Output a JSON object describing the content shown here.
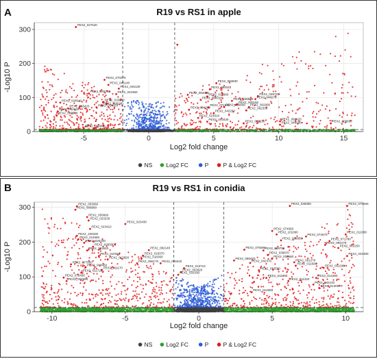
{
  "chart_data": [
    {
      "type": "scatter",
      "panel_label": "A",
      "title": "R19 vs RS1 in apple",
      "xlabel": "Log2 fold change",
      "ylabel": "-Log10 P",
      "xlim": [
        -8.8,
        16.5
      ],
      "ylim": [
        0,
        320
      ],
      "xticks": [
        -5,
        0,
        5,
        10,
        15
      ],
      "yticks": [
        0,
        100,
        200,
        300
      ],
      "grid": true,
      "fc_cutoff": [
        -2,
        2
      ],
      "p_cutoff": 6,
      "legend": {
        "position": "bottom",
        "entries": [
          "NS",
          "Log2 FC",
          "P",
          "P & Log2 FC"
        ]
      },
      "colors": {
        "NS": "#404040",
        "Log2 FC": "#2ca02c",
        "P": "#2a5bd7",
        "P & Log2 FC": "#e31a1c"
      },
      "labeled_points": [
        {
          "x": -5.6,
          "y": 307,
          "label": "PEX2_027540"
        },
        {
          "x": -3.4,
          "y": 152,
          "label": "PEX2_070270"
        },
        {
          "x": -3.1,
          "y": 137,
          "label": "PEX2_045140"
        },
        {
          "x": -2.3,
          "y": 126,
          "label": "PEX2_045130"
        },
        {
          "x": -4.6,
          "y": 112,
          "label": "PEX2_065750"
        },
        {
          "x": -2.5,
          "y": 110,
          "label": "PEX2_041960"
        },
        {
          "x": -6.8,
          "y": 85,
          "label": "PEX2_028610"
        },
        {
          "x": -3.5,
          "y": 87,
          "label": "PEX2_016560"
        },
        {
          "x": -3.6,
          "y": 76,
          "label": "PEX2_406240"
        },
        {
          "x": -6.2,
          "y": 68,
          "label": "PEX2_016420"
        },
        {
          "x": -4.0,
          "y": 70,
          "label": "PEX2_039320"
        },
        {
          "x": -7.0,
          "y": 59,
          "label": "PEX2_082630"
        },
        {
          "x": -7.1,
          "y": 48,
          "label": "PEX2_069560"
        },
        {
          "x": -5.0,
          "y": 10,
          "label": "PEX2_000800"
        },
        {
          "x": 5.2,
          "y": 142,
          "label": "PEX2_083830"
        },
        {
          "x": 4.7,
          "y": 124,
          "label": "PEX2_084020"
        },
        {
          "x": 3.0,
          "y": 108,
          "label": "PEX2_062010"
        },
        {
          "x": 4.5,
          "y": 103,
          "label": "PEX2_017960"
        },
        {
          "x": 4.0,
          "y": 93,
          "label": "PEX2_068310"
        },
        {
          "x": 6.4,
          "y": 90,
          "label": "PEX2_035880"
        },
        {
          "x": 8.4,
          "y": 104,
          "label": "PEX2_028720"
        },
        {
          "x": 8.2,
          "y": 95,
          "label": "PEX2_048270"
        },
        {
          "x": 6.8,
          "y": 80,
          "label": "PEX2_000160"
        },
        {
          "x": 4.6,
          "y": 71,
          "label": "PEX2_071540"
        },
        {
          "x": 5.8,
          "y": 72,
          "label": "PEX2_039090"
        },
        {
          "x": 7.7,
          "y": 72,
          "label": "PEX2_002900"
        },
        {
          "x": 7.5,
          "y": 62,
          "label": "PEX2_092330"
        },
        {
          "x": 3.1,
          "y": 64,
          "label": "PEX2_004280"
        },
        {
          "x": 5.0,
          "y": 54,
          "label": "PEX2_042250"
        },
        {
          "x": 3.8,
          "y": 40,
          "label": "PEX2_023510"
        },
        {
          "x": 4.5,
          "y": 29,
          "label": "PEX2_003430"
        },
        {
          "x": 7.3,
          "y": 24,
          "label": "PEX2_000230"
        },
        {
          "x": 10.1,
          "y": 30,
          "label": "PEX2_068620"
        },
        {
          "x": 10.1,
          "y": 20,
          "label": "PEX2_048560"
        },
        {
          "x": 14.0,
          "y": 24,
          "label": "PEX2_009650"
        },
        {
          "x": 2.2,
          "y": 255,
          "label": ""
        }
      ]
    },
    {
      "type": "scatter",
      "panel_label": "B",
      "title": "R19 vs RS1 in conidia",
      "xlabel": "Log2 fold change",
      "ylabel": "-Log10 P",
      "xlim": [
        -11.2,
        11.2
      ],
      "ylim": [
        0,
        315
      ],
      "xticks": [
        -10,
        -5,
        0,
        5,
        10
      ],
      "yticks": [
        0,
        100,
        200,
        300
      ],
      "grid": true,
      "fc_cutoff": [
        -1.7,
        1.7
      ],
      "p_cutoff": 12,
      "legend": {
        "position": "bottom",
        "entries": [
          "NS",
          "Log2 FC",
          "P",
          "P & Log2 FC"
        ]
      },
      "colors": {
        "NS": "#404040",
        "Log2 FC": "#2ca02c",
        "P": "#2a5bd7",
        "P & Log2 FC": "#e31a1c"
      },
      "labeled_points": [
        {
          "x": -8.3,
          "y": 303,
          "label": "PEX2_053060"
        },
        {
          "x": -8.4,
          "y": 293,
          "label": "PEX2_006660"
        },
        {
          "x": -7.6,
          "y": 272,
          "label": "PEX2_050660"
        },
        {
          "x": -7.5,
          "y": 262,
          "label": "PEX2_023230"
        },
        {
          "x": -5.0,
          "y": 252,
          "label": "PEX2_023430"
        },
        {
          "x": -7.4,
          "y": 238,
          "label": "PEX2_023410"
        },
        {
          "x": -8.3,
          "y": 218,
          "label": "PEX2_100330"
        },
        {
          "x": -8.2,
          "y": 208,
          "label": "PEX2_011560"
        },
        {
          "x": -7.8,
          "y": 198,
          "label": "PEX2_026700"
        },
        {
          "x": -7.2,
          "y": 187,
          "label": "PEX2_026930"
        },
        {
          "x": -7.6,
          "y": 176,
          "label": "PEX2_053620"
        },
        {
          "x": -6.8,
          "y": 160,
          "label": "PEX2_010340"
        },
        {
          "x": -6.2,
          "y": 150,
          "label": "PEX2_013820"
        },
        {
          "x": -8.7,
          "y": 136,
          "label": "PEX2_077060"
        },
        {
          "x": -7.7,
          "y": 128,
          "label": "PEX2_018460"
        },
        {
          "x": -6.6,
          "y": 120,
          "label": "PEX2_011170"
        },
        {
          "x": -8.0,
          "y": 112,
          "label": "PEX2_011720"
        },
        {
          "x": -9.2,
          "y": 98,
          "label": "PEX2_076430"
        },
        {
          "x": -3.4,
          "y": 177,
          "label": "PEX2_082140"
        },
        {
          "x": -3.8,
          "y": 161,
          "label": "PEX2_018370"
        },
        {
          "x": -3.9,
          "y": 152,
          "label": "PEX2_018360"
        },
        {
          "x": -4.2,
          "y": 139,
          "label": "PEX2_066170"
        },
        {
          "x": -2.6,
          "y": 139,
          "label": "PEX2_049240"
        },
        {
          "x": -1.0,
          "y": 125,
          "label": "PEX2_013710"
        },
        {
          "x": -1.2,
          "y": 114,
          "label": "PEX2_003020"
        },
        {
          "x": -1.4,
          "y": 106,
          "label": "PEX2_033330"
        },
        {
          "x": -9.0,
          "y": 88,
          "label": "PEX2_004550"
        },
        {
          "x": 6.2,
          "y": 304,
          "label": "PEX2_026080"
        },
        {
          "x": 10.1,
          "y": 304,
          "label": "PEX2_075930"
        },
        {
          "x": 5.0,
          "y": 232,
          "label": "PEX2_074060"
        },
        {
          "x": 5.3,
          "y": 222,
          "label": "PEX2_101090"
        },
        {
          "x": 7.3,
          "y": 216,
          "label": "PEX2_074670"
        },
        {
          "x": 10.0,
          "y": 222,
          "label": "PEX2_011080"
        },
        {
          "x": 5.6,
          "y": 205,
          "label": "PEX2_039950"
        },
        {
          "x": 8.9,
          "y": 203,
          "label": "PEX2_071790"
        },
        {
          "x": 8.6,
          "y": 192,
          "label": "PEX2_092170"
        },
        {
          "x": 9.5,
          "y": 183,
          "label": "PEX2_083150"
        },
        {
          "x": 10.1,
          "y": 160,
          "label": "PEX2_023490"
        },
        {
          "x": 3.1,
          "y": 178,
          "label": "PEX2_075580"
        },
        {
          "x": 4.4,
          "y": 176,
          "label": "PEX2_089700"
        },
        {
          "x": 4.7,
          "y": 163,
          "label": "PEX2_036870"
        },
        {
          "x": 5.0,
          "y": 153,
          "label": "PEX2_035680"
        },
        {
          "x": 2.4,
          "y": 147,
          "label": "PEX2_066070"
        },
        {
          "x": 3.5,
          "y": 140,
          "label": "PEX2_042370"
        },
        {
          "x": 6.5,
          "y": 142,
          "label": "PEX2_051270"
        },
        {
          "x": 6.6,
          "y": 132,
          "label": "PEX2_011690"
        },
        {
          "x": 8.5,
          "y": 126,
          "label": "PEX2_031180"
        },
        {
          "x": 4.1,
          "y": 118,
          "label": "PEX2_013590"
        },
        {
          "x": 4.6,
          "y": 97,
          "label": "PEX2_011960"
        },
        {
          "x": 8.0,
          "y": 97,
          "label": "PEX2_014300"
        },
        {
          "x": 6.1,
          "y": 88,
          "label": "PEX2_011320"
        },
        {
          "x": 7.8,
          "y": 78,
          "label": "PEX2_042140"
        },
        {
          "x": 8.2,
          "y": 68,
          "label": "PEX2_013000"
        },
        {
          "x": 3.6,
          "y": 56,
          "label": "PEX2_012650"
        }
      ]
    }
  ]
}
